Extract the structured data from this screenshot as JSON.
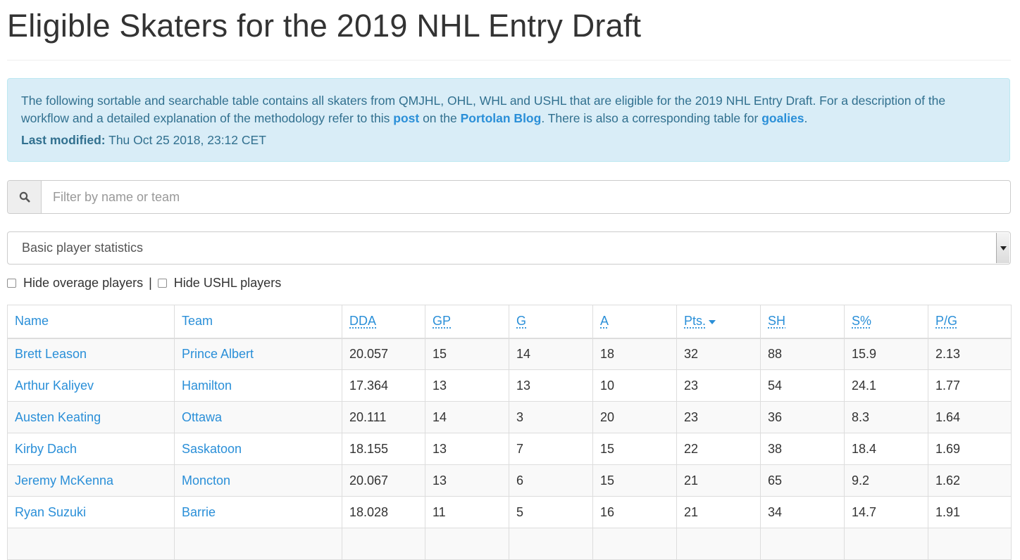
{
  "page": {
    "title": "Eligible Skaters for the 2019 NHL Entry Draft"
  },
  "info": {
    "text1": "The following sortable and searchable table contains all skaters from QMJHL, OHL, WHL and USHL that are eligible for the 2019 NHL Entry Draft. For a description of the workflow and a detailed explanation of the methodology refer to this ",
    "link_post": "post",
    "text2": " on the ",
    "link_blog": "Portolan Blog",
    "text3": ". There is also a corresponding table for ",
    "link_goalies": "goalies",
    "text4": ".",
    "modified_label": "Last modified:",
    "modified_value": " Thu Oct 25 2018, 23:12 CET"
  },
  "search": {
    "placeholder": "Filter by name or team",
    "icon": "search-icon"
  },
  "stat_select": {
    "selected": "Basic player statistics"
  },
  "filters": {
    "hide_overage": "Hide overage players",
    "separator": "|",
    "hide_ushl": "Hide USHL players"
  },
  "table": {
    "headers": [
      "Name",
      "Team",
      "DDA",
      "GP",
      "G",
      "A",
      "Pts.",
      "SH",
      "S%",
      "P/G"
    ],
    "sorted_column": "Pts.",
    "rows": [
      [
        "Brett Leason",
        "Prince Albert",
        "20.057",
        "15",
        "14",
        "18",
        "32",
        "88",
        "15.9",
        "2.13"
      ],
      [
        "Arthur Kaliyev",
        "Hamilton",
        "17.364",
        "13",
        "13",
        "10",
        "23",
        "54",
        "24.1",
        "1.77"
      ],
      [
        "Austen Keating",
        "Ottawa",
        "20.111",
        "14",
        "3",
        "20",
        "23",
        "36",
        "8.3",
        "1.64"
      ],
      [
        "Kirby Dach",
        "Saskatoon",
        "18.155",
        "13",
        "7",
        "15",
        "22",
        "38",
        "18.4",
        "1.69"
      ],
      [
        "Jeremy McKenna",
        "Moncton",
        "20.067",
        "13",
        "6",
        "15",
        "21",
        "65",
        "9.2",
        "1.62"
      ],
      [
        "Ryan Suzuki",
        "Barrie",
        "18.028",
        "11",
        "5",
        "16",
        "21",
        "34",
        "14.7",
        "1.91"
      ],
      [
        "",
        "",
        "",
        "",
        "",
        "",
        "",
        "",
        "",
        ""
      ]
    ]
  },
  "colors": {
    "link": "#2a8fd8",
    "info_bg": "#d9edf7",
    "info_text": "#31708f"
  }
}
